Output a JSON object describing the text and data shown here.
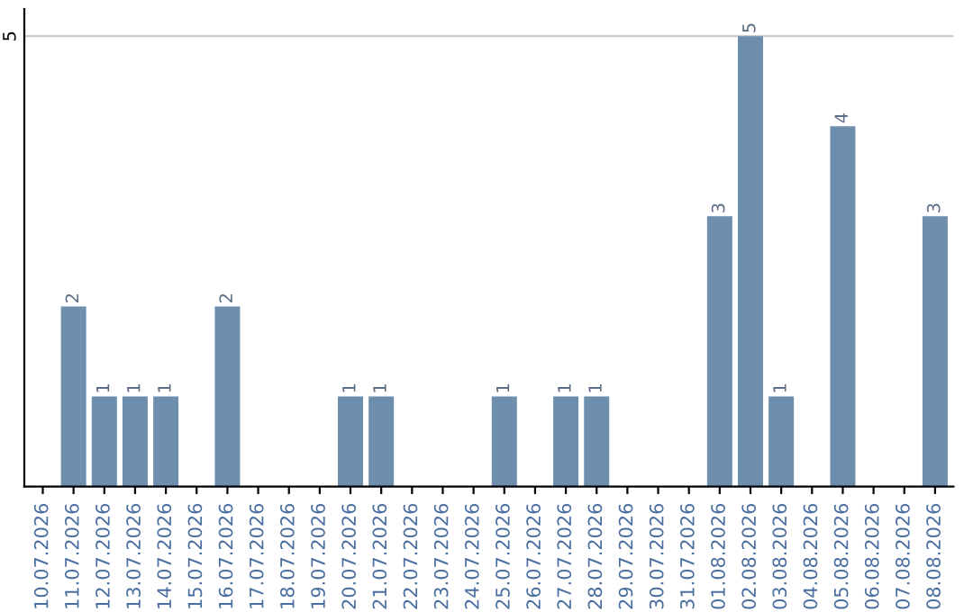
{
  "chart_data": {
    "type": "bar",
    "categories": [
      "10.07.2026",
      "11.07.2026",
      "12.07.2026",
      "13.07.2026",
      "14.07.2026",
      "15.07.2026",
      "16.07.2026",
      "17.07.2026",
      "18.07.2026",
      "19.07.2026",
      "20.07.2026",
      "21.07.2026",
      "22.07.2026",
      "23.07.2026",
      "24.07.2026",
      "25.07.2026",
      "26.07.2026",
      "27.07.2026",
      "28.07.2026",
      "29.07.2026",
      "30.07.2026",
      "31.07.2026",
      "01.08.2026",
      "02.08.2026",
      "03.08.2026",
      "04.08.2026",
      "05.08.2026",
      "06.08.2026",
      "07.08.2026",
      "08.08.2026"
    ],
    "values": [
      0,
      2,
      1,
      1,
      1,
      0,
      2,
      0,
      0,
      0,
      1,
      1,
      0,
      0,
      0,
      1,
      0,
      1,
      1,
      0,
      0,
      0,
      3,
      5,
      1,
      0,
      4,
      0,
      0,
      3
    ],
    "value_labels": [
      null,
      "2",
      "1",
      "1",
      "1",
      null,
      "2",
      null,
      null,
      null,
      "1",
      "1",
      null,
      null,
      null,
      "1",
      null,
      "1",
      "1",
      null,
      null,
      null,
      "3",
      "5",
      "1",
      null,
      "4",
      null,
      null,
      "3"
    ],
    "color": "#6e8eae",
    "ylim": [
      0,
      5.3
    ],
    "yticks": [
      5
    ],
    "grid": "y"
  }
}
